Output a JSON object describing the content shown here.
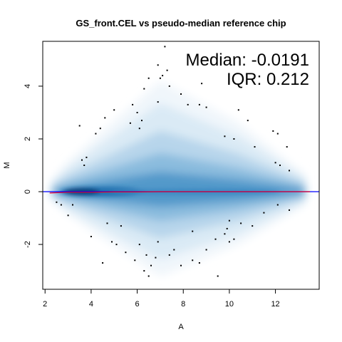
{
  "chart_data": {
    "type": "scatter",
    "title": "GS_front.CEL vs pseudo-median reference chip",
    "xlabel": "A",
    "ylabel": "M",
    "xlim": [
      1.9,
      13.9
    ],
    "ylim": [
      -3.7,
      5.7
    ],
    "x_ticks": [
      2,
      4,
      6,
      8,
      10,
      12
    ],
    "y_ticks": [
      -2,
      0,
      2,
      4
    ],
    "annotations": {
      "median": "Median: -0.0191",
      "iqr": "IQR: 0.212"
    },
    "hline": 0,
    "lowess": [
      [
        2.2,
        -0.05
      ],
      [
        3,
        -0.02
      ],
      [
        4,
        -0.02
      ],
      [
        5,
        -0.01
      ],
      [
        6,
        -0.01
      ],
      [
        7,
        0.0
      ],
      [
        8,
        0.0
      ],
      [
        9,
        0.0
      ],
      [
        10,
        0.0
      ],
      [
        11,
        0.0
      ],
      [
        12,
        0.0
      ],
      [
        13.5,
        0.0
      ]
    ],
    "outliers": [
      [
        7.2,
        5.5
      ],
      [
        6.9,
        4.8
      ],
      [
        7.3,
        4.6
      ],
      [
        7.1,
        4.4
      ],
      [
        6.5,
        4.3
      ],
      [
        7.0,
        4.3
      ],
      [
        6.3,
        3.9
      ],
      [
        7.4,
        4.0
      ],
      [
        8.8,
        4.1
      ],
      [
        7.9,
        3.7
      ],
      [
        6.9,
        3.4
      ],
      [
        5.8,
        3.3
      ],
      [
        8.2,
        3.3
      ],
      [
        8.7,
        3.3
      ],
      [
        9.0,
        3.2
      ],
      [
        6.0,
        3.0
      ],
      [
        5.0,
        3.1
      ],
      [
        4.6,
        2.8
      ],
      [
        6.2,
        2.7
      ],
      [
        5.7,
        2.6
      ],
      [
        4.4,
        2.4
      ],
      [
        3.5,
        2.5
      ],
      [
        6.1,
        2.4
      ],
      [
        4.2,
        2.2
      ],
      [
        10.4,
        3.1
      ],
      [
        10.8,
        2.7
      ],
      [
        11.9,
        2.3
      ],
      [
        9.8,
        2.1
      ],
      [
        10.2,
        2.0
      ],
      [
        11.1,
        1.7
      ],
      [
        12.1,
        2.2
      ],
      [
        12.5,
        1.7
      ],
      [
        3.8,
        1.3
      ],
      [
        3.6,
        1.2
      ],
      [
        3.7,
        1.0
      ],
      [
        12.6,
        0.8
      ],
      [
        12.0,
        1.1
      ],
      [
        12.2,
        1.0
      ],
      [
        2.7,
        -0.5
      ],
      [
        2.5,
        -0.4
      ],
      [
        3.0,
        -0.9
      ],
      [
        4.0,
        -1.7
      ],
      [
        4.7,
        -1.2
      ],
      [
        5.3,
        -1.3
      ],
      [
        4.9,
        -1.9
      ],
      [
        5.1,
        -2.0
      ],
      [
        5.5,
        -2.3
      ],
      [
        6.1,
        -2.0
      ],
      [
        6.4,
        -2.4
      ],
      [
        6.8,
        -2.5
      ],
      [
        6.6,
        -2.8
      ],
      [
        5.9,
        -2.6
      ],
      [
        6.3,
        -3.0
      ],
      [
        6.5,
        -3.2
      ],
      [
        7.4,
        -2.4
      ],
      [
        7.9,
        -2.8
      ],
      [
        8.4,
        -2.6
      ],
      [
        8.7,
        -2.7
      ],
      [
        9.5,
        -3.2
      ],
      [
        9.0,
        -2.2
      ],
      [
        9.4,
        -1.8
      ],
      [
        9.8,
        -1.6
      ],
      [
        10.0,
        -1.9
      ],
      [
        10.2,
        -1.8
      ],
      [
        9.9,
        -1.4
      ],
      [
        10.5,
        -1.2
      ],
      [
        10.0,
        -1.1
      ],
      [
        11.0,
        -1.3
      ],
      [
        11.5,
        -0.8
      ],
      [
        12.1,
        -0.5
      ],
      [
        12.6,
        -0.7
      ],
      [
        8.4,
        -1.5
      ],
      [
        7.6,
        -2.2
      ],
      [
        6.9,
        -1.9
      ],
      [
        4.5,
        -2.7
      ],
      [
        3.2,
        -0.5
      ]
    ]
  }
}
